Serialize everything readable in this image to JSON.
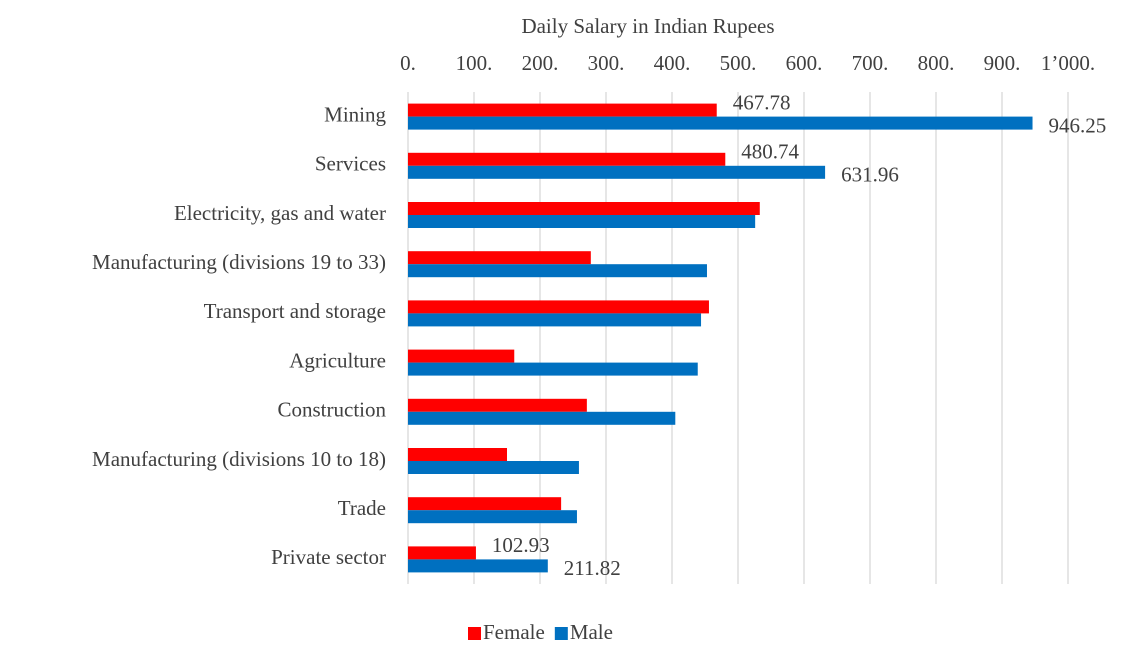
{
  "chart_data": {
    "type": "hbar",
    "x_label": "Daily Salary in Indian Rupees",
    "categories": [
      "Mining",
      "Services",
      "Electricity, gas and water",
      "Manufacturing (divisions 19 to 33)",
      "Transport and storage",
      "Agriculture",
      "Construction",
      "Manufacturing (divisions 10 to 18)",
      "Trade",
      "Private sector"
    ],
    "series": [
      {
        "name": "Female",
        "color": "#ff0000",
        "values": [
          467.78,
          480.74,
          533,
          277,
          456,
          161,
          271,
          150,
          232,
          102.93
        ],
        "value_labels": [
          "467.78",
          "480.74",
          null,
          null,
          null,
          null,
          null,
          null,
          null,
          "102.93"
        ]
      },
      {
        "name": "Male",
        "color": "#0070c0",
        "values": [
          946.25,
          631.96,
          526,
          453,
          444,
          439,
          405,
          259,
          256,
          211.82
        ],
        "value_labels": [
          "946.25",
          "631.96",
          null,
          null,
          null,
          null,
          null,
          null,
          null,
          "211.82"
        ]
      }
    ],
    "xlim": [
      0,
      1000
    ],
    "xticks": [
      {
        "value": 0,
        "label": "0."
      },
      {
        "value": 100,
        "label": "100."
      },
      {
        "value": 200,
        "label": "200."
      },
      {
        "value": 300,
        "label": "300."
      },
      {
        "value": 400,
        "label": "400."
      },
      {
        "value": 500,
        "label": "500."
      },
      {
        "value": 600,
        "label": "600."
      },
      {
        "value": 700,
        "label": "700."
      },
      {
        "value": 800,
        "label": "800."
      },
      {
        "value": 900,
        "label": "900."
      },
      {
        "value": 1000,
        "label": "1’000."
      }
    ],
    "grid": true,
    "legend": "bottom"
  }
}
